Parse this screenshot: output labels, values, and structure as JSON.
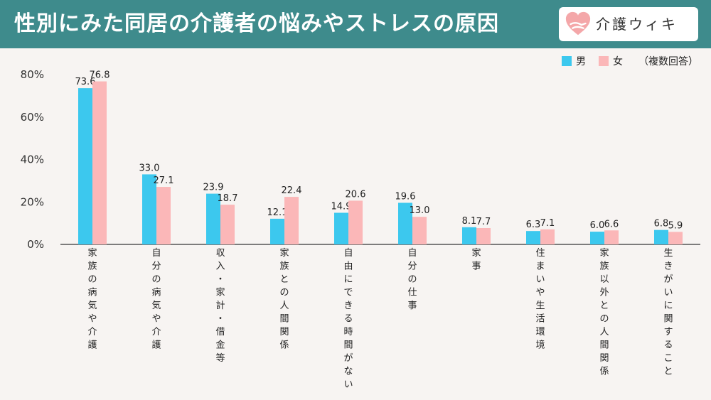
{
  "header": {
    "title": "性別にみた同居の介護者の悩みやストレスの原因",
    "logo_text": "介護ウィキ"
  },
  "legend": {
    "items": [
      {
        "label": "男",
        "color": "#3cc8ee"
      },
      {
        "label": "女",
        "color": "#fbb7b8"
      }
    ],
    "note": "（複数回答）"
  },
  "chart_data": {
    "type": "bar",
    "categories": [
      "家族の病気や介護",
      "自分の病気や介護",
      "収入・家計・借金等",
      "家族との人間関係",
      "自由にできる時間がない",
      "自分の仕事",
      "家事",
      "住まいや生活環境",
      "家族以外との人間関係",
      "生きがいに関すること"
    ],
    "series": [
      {
        "name": "男",
        "color": "#3cc8ee",
        "values": [
          73.6,
          33.0,
          23.9,
          12.1,
          14.9,
          19.6,
          8.1,
          6.3,
          6.0,
          6.8
        ]
      },
      {
        "name": "女",
        "color": "#fbb7b8",
        "values": [
          76.8,
          27.1,
          18.7,
          22.4,
          20.6,
          13.0,
          7.7,
          7.1,
          6.6,
          5.9
        ]
      }
    ],
    "y_ticks": [
      "0%",
      "20%",
      "40%",
      "60%",
      "80%"
    ],
    "ylim": [
      0,
      80
    ],
    "value_labels": [
      [
        "73.6",
        "33.0",
        "23.9",
        "12.1",
        "14.9",
        "19.6",
        "8.1",
        "6.3",
        "6.0",
        "6.8"
      ],
      [
        "76.8",
        "27.1",
        "18.7",
        "22.4",
        "20.6",
        "13.0",
        "7.7",
        "7.1",
        "6.6",
        "5.9"
      ]
    ],
    "grid": false,
    "legend_position": "top-right"
  }
}
